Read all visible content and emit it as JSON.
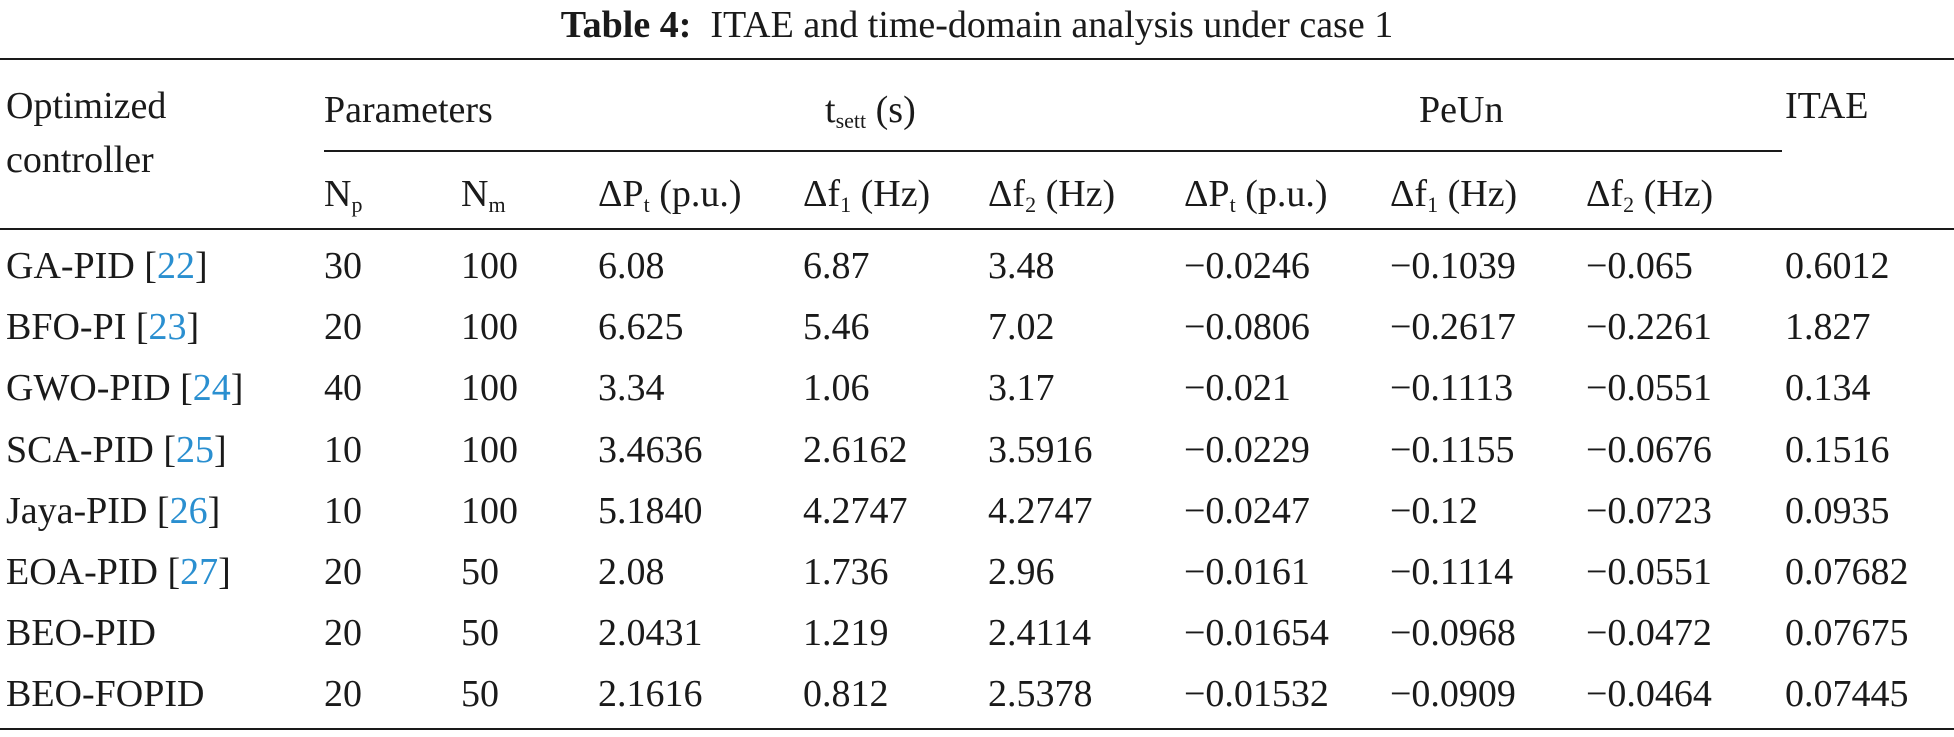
{
  "caption": {
    "label": "Table 4:",
    "text": "ITAE and time-domain analysis under case 1"
  },
  "header": {
    "col_controller": [
      "Optimized",
      "controller"
    ],
    "group_parameters": "Parameters",
    "group_tsett": {
      "main": "t",
      "sub": "sett",
      "unit": "(s)"
    },
    "group_peun": "PeUn",
    "col_itae": "ITAE",
    "sub_np": {
      "main": "N",
      "sub": "p"
    },
    "sub_nm": {
      "main": "N",
      "sub": "m"
    },
    "sub_dpt": {
      "pre": "ΔP",
      "sub": "t",
      "post": "(p.u.)"
    },
    "sub_df1": {
      "pre": "Δf",
      "sub": "1",
      "post": "(Hz)"
    },
    "sub_df2": {
      "pre": "Δf",
      "sub": "2",
      "post": "(Hz)"
    }
  },
  "rows": [
    {
      "name": "GA-PID",
      "cite": "22",
      "np": "30",
      "nm": "100",
      "t_dpt": "6.08",
      "t_df1": "6.87",
      "t_df2": "3.48",
      "p_dpt": "−0.0246",
      "p_df1": "−0.1039",
      "p_df2": "−0.065",
      "itae": "0.6012"
    },
    {
      "name": "BFO-PI",
      "cite": "23",
      "np": "20",
      "nm": "100",
      "t_dpt": "6.625",
      "t_df1": "5.46",
      "t_df2": "7.02",
      "p_dpt": "−0.0806",
      "p_df1": "−0.2617",
      "p_df2": "−0.2261",
      "itae": "1.827"
    },
    {
      "name": "GWO-PID",
      "cite": "24",
      "np": "40",
      "nm": "100",
      "t_dpt": "3.34",
      "t_df1": "1.06",
      "t_df2": "3.17",
      "p_dpt": "−0.021",
      "p_df1": "−0.1113",
      "p_df2": "−0.0551",
      "itae": "0.134"
    },
    {
      "name": "SCA-PID",
      "cite": "25",
      "np": "10",
      "nm": "100",
      "t_dpt": "3.4636",
      "t_df1": "2.6162",
      "t_df2": "3.5916",
      "p_dpt": "−0.0229",
      "p_df1": "−0.1155",
      "p_df2": "−0.0676",
      "itae": "0.1516"
    },
    {
      "name": "Jaya-PID",
      "cite": "26",
      "np": "10",
      "nm": "100",
      "t_dpt": "5.1840",
      "t_df1": "4.2747",
      "t_df2": "4.2747",
      "p_dpt": "−0.0247",
      "p_df1": "−0.12",
      "p_df2": "−0.0723",
      "itae": "0.0935"
    },
    {
      "name": "EOA-PID",
      "cite": "27",
      "np": "20",
      "nm": "50",
      "t_dpt": "2.08",
      "t_df1": "1.736",
      "t_df2": "2.96",
      "p_dpt": "−0.0161",
      "p_df1": "−0.1114",
      "p_df2": "−0.0551",
      "itae": "0.07682"
    },
    {
      "name": "BEO-PID",
      "cite": "",
      "np": "20",
      "nm": "50",
      "t_dpt": "2.0431",
      "t_df1": "1.219",
      "t_df2": "2.4114",
      "p_dpt": "−0.01654",
      "p_df1": "−0.0968",
      "p_df2": "−0.0472",
      "itae": "0.07675"
    },
    {
      "name": "BEO-FOPID",
      "cite": "",
      "np": "20",
      "nm": "50",
      "t_dpt": "2.1616",
      "t_df1": "0.812",
      "t_df2": "2.5378",
      "p_dpt": "−0.01532",
      "p_df1": "−0.0909",
      "p_df2": "−0.0464",
      "itae": "0.07445"
    }
  ]
}
